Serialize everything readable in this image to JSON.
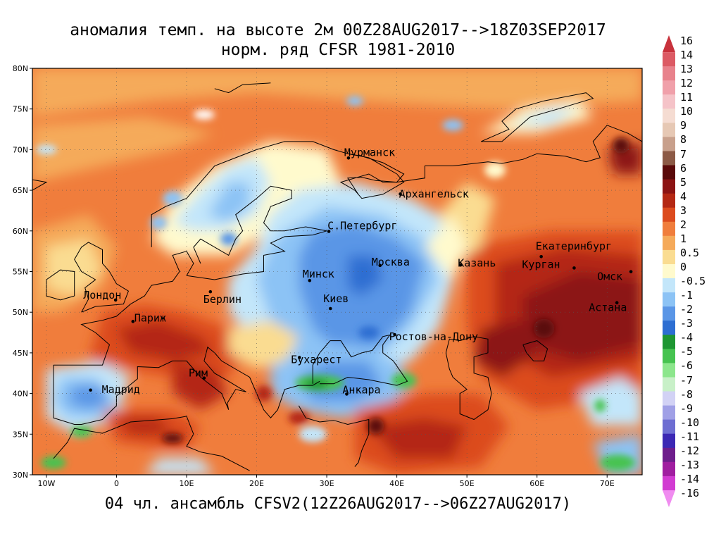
{
  "title": {
    "line1": "аномалия темп. на высоте 2м 00Z28AUG2017-->18Z03SEP2017",
    "line2": "норм. ряд CFSR 1981-2010",
    "bottom": "04 чл. ансамбль CFSV2(12Z26AUG2017-->06Z27AUG2017)"
  },
  "axes": {
    "lon_min": -12,
    "lon_max": 75,
    "lat_min": 30,
    "lat_max": 80,
    "lat_ticks": [
      {
        "value": 80,
        "label": "80N"
      },
      {
        "value": 75,
        "label": "75N"
      },
      {
        "value": 70,
        "label": "70N"
      },
      {
        "value": 65,
        "label": "65N"
      },
      {
        "value": 60,
        "label": "60N"
      },
      {
        "value": 55,
        "label": "55N"
      },
      {
        "value": 50,
        "label": "50N"
      },
      {
        "value": 45,
        "label": "45N"
      },
      {
        "value": 40,
        "label": "40N"
      },
      {
        "value": 35,
        "label": "35N"
      },
      {
        "value": 30,
        "label": "30N"
      }
    ],
    "lon_ticks": [
      {
        "value": -10,
        "label": "10W"
      },
      {
        "value": 0,
        "label": "0"
      },
      {
        "value": 10,
        "label": "10E"
      },
      {
        "value": 20,
        "label": "20E"
      },
      {
        "value": 30,
        "label": "30E"
      },
      {
        "value": 40,
        "label": "40E"
      },
      {
        "value": 50,
        "label": "50E"
      },
      {
        "value": 60,
        "label": "60E"
      },
      {
        "value": 70,
        "label": "70E"
      }
    ]
  },
  "cities": [
    {
      "name": "Мурманск",
      "lon": 33.1,
      "lat": 68.97
    },
    {
      "name": "Архангельск",
      "lon": 40.5,
      "lat": 64.54
    },
    {
      "name": "С.Петербург",
      "lon": 30.3,
      "lat": 59.94
    },
    {
      "name": "Москва",
      "lon": 37.6,
      "lat": 55.75
    },
    {
      "name": "Казань",
      "lon": 49.1,
      "lat": 55.8
    },
    {
      "name": "Екатеринбург",
      "lon": 60.6,
      "lat": 56.84
    },
    {
      "name": "Курган",
      "lon": 65.3,
      "lat": 55.44
    },
    {
      "name": "Омск",
      "lon": 73.4,
      "lat": 54.99
    },
    {
      "name": "Астана",
      "lon": 71.4,
      "lat": 51.17
    },
    {
      "name": "Минск",
      "lon": 27.56,
      "lat": 53.9
    },
    {
      "name": "Киев",
      "lon": 30.52,
      "lat": 50.45
    },
    {
      "name": "Берлин",
      "lon": 13.4,
      "lat": 52.52
    },
    {
      "name": "Лондон",
      "lon": -0.13,
      "lat": 51.5
    },
    {
      "name": "Париж",
      "lon": 2.35,
      "lat": 48.86
    },
    {
      "name": "Ростов-на-Дону",
      "lon": 39.7,
      "lat": 47.23
    },
    {
      "name": "Бухарест",
      "lon": 26.1,
      "lat": 44.43
    },
    {
      "name": "Рим",
      "lon": 12.5,
      "lat": 41.9
    },
    {
      "name": "Мадрид",
      "lon": -3.7,
      "lat": 40.42
    },
    {
      "name": "Анкара",
      "lon": 32.85,
      "lat": 39.93
    }
  ],
  "colorbar": {
    "levels": [
      {
        "label": "16",
        "color": "#c8323c"
      },
      {
        "label": "14",
        "color": "#dc5a64"
      },
      {
        "label": "13",
        "color": "#e8828c"
      },
      {
        "label": "12",
        "color": "#f0a0aa"
      },
      {
        "label": "11",
        "color": "#f5c3c8"
      },
      {
        "label": "10",
        "color": "#f5dcd2"
      },
      {
        "label": "9",
        "color": "#e6c8b4"
      },
      {
        "label": "8",
        "color": "#c8a08c"
      },
      {
        "label": "7",
        "color": "#8c5a46"
      },
      {
        "label": "6",
        "color": "#5a0a0a"
      },
      {
        "label": "5",
        "color": "#8c1414"
      },
      {
        "label": "4",
        "color": "#b42814"
      },
      {
        "label": "3",
        "color": "#dc4b1e"
      },
      {
        "label": "2",
        "color": "#f07d3c"
      },
      {
        "label": "1",
        "color": "#f5aa5a"
      },
      {
        "label": "0.5",
        "color": "#fadc91"
      },
      {
        "label": "0",
        "color": "#fffacd"
      },
      {
        "label": "-0.5",
        "color": "#c3e6fa"
      },
      {
        "label": "-1",
        "color": "#8cc3f5"
      },
      {
        "label": "-2",
        "color": "#5a96e6"
      },
      {
        "label": "-3",
        "color": "#2d6ed2"
      },
      {
        "label": "-4",
        "color": "#1e9632"
      },
      {
        "label": "-5",
        "color": "#46c350"
      },
      {
        "label": "-6",
        "color": "#8ce68c"
      },
      {
        "label": "-7",
        "color": "#c8f0c8"
      },
      {
        "label": "-8",
        "color": "#d2d2f5"
      },
      {
        "label": "-9",
        "color": "#a0a0e6"
      },
      {
        "label": "-10",
        "color": "#6e6ed2"
      },
      {
        "label": "-11",
        "color": "#3c28b4"
      },
      {
        "label": "-12",
        "color": "#6e1e8c"
      },
      {
        "label": "-13",
        "color": "#a01ea0"
      },
      {
        "label": "-14",
        "color": "#d23cd2"
      },
      {
        "label": "-16",
        "color": "#f08cf0"
      }
    ]
  },
  "palette": {
    "warm_light": "#f5aa5a",
    "warm": "#f07d3c",
    "warm_dark": "#dc4b1e",
    "hot": "#b42814",
    "very_hot": "#8c1414",
    "extreme": "#5a0a0a",
    "neutral": "#fffacd",
    "pale": "#fadc91",
    "cool_light": "#c3e6fa",
    "cool": "#8cc3f5",
    "cold": "#5a96e6",
    "very_cold": "#2d6ed2",
    "green": "#46c350",
    "dark_green": "#1e9632",
    "snow": "#ffffff"
  }
}
